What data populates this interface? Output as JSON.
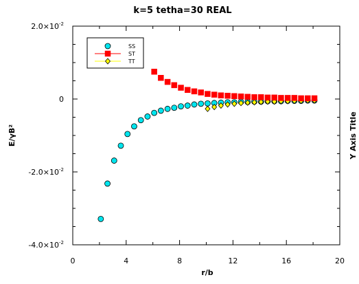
{
  "chart_data": {
    "type": "scatter",
    "title": "k=5 tetha=30 REAL",
    "xlabel": "r/b",
    "ylabel": "E/γB²",
    "ylabel_right": "Y Axis Title",
    "xlim": [
      0,
      20
    ],
    "ylim": [
      -0.04,
      0.02
    ],
    "x_ticks": [
      "0",
      "4",
      "8",
      "12",
      "16",
      "20"
    ],
    "y_ticks": [
      {
        "mantissa": "-4.0×10",
        "exp": "-2",
        "value": -0.04
      },
      {
        "mantissa": "-2.0×10",
        "exp": "-2",
        "value": -0.02
      },
      {
        "mantissa": "0",
        "exp": "",
        "value": 0
      },
      {
        "mantissa": "2.0×10",
        "exp": "-2",
        "value": 0.02
      }
    ],
    "legend_position": "top-left",
    "series": [
      {
        "name": "SS",
        "marker": "circle",
        "color": "#00e5ee",
        "x": [
          2.1,
          2.6,
          3.1,
          3.6,
          4.1,
          4.6,
          5.1,
          5.6,
          6.1,
          6.6,
          7.1,
          7.6,
          8.1,
          8.6,
          9.1,
          9.6,
          10.1,
          10.6,
          11.1,
          11.6,
          12.1,
          12.6,
          13.1,
          13.6,
          14.1,
          14.6,
          15.1,
          15.6,
          16.1,
          16.6,
          17.1,
          17.6,
          18.1
        ],
        "y": [
          -0.0329,
          -0.0232,
          -0.0169,
          -0.0128,
          -0.0096,
          -0.0075,
          -0.0058,
          -0.0048,
          -0.0038,
          -0.0032,
          -0.0027,
          -0.0024,
          -0.002,
          -0.0018,
          -0.0015,
          -0.0013,
          -0.0012,
          -0.0011,
          -0.001,
          -0.0009,
          -0.0009,
          -0.0008,
          -0.0008,
          -0.0007,
          -0.0007,
          -0.0006,
          -0.0006,
          -0.0006,
          -0.0005,
          -0.0005,
          -0.0005,
          -0.0004,
          -0.0004
        ]
      },
      {
        "name": "ST",
        "marker": "square",
        "color": "#ff0000",
        "x": [
          6.1,
          6.6,
          7.1,
          7.6,
          8.1,
          8.6,
          9.1,
          9.6,
          10.1,
          10.6,
          11.1,
          11.6,
          12.1,
          12.6,
          13.1,
          13.6,
          14.1,
          14.6,
          15.1,
          15.6,
          16.1,
          16.6,
          17.1,
          17.6,
          18.1
        ],
        "y": [
          0.0075,
          0.0058,
          0.0047,
          0.0038,
          0.0031,
          0.0025,
          0.0021,
          0.0018,
          0.0014,
          0.0012,
          0.001,
          0.0009,
          0.0008,
          0.0007,
          0.0006,
          0.0005,
          0.0005,
          0.0004,
          0.0004,
          0.0003,
          0.0003,
          0.0003,
          0.0002,
          0.0002,
          0.0002
        ]
      },
      {
        "name": "TT",
        "marker": "diamond",
        "color": "#ffff00",
        "x": [
          10.1,
          10.6,
          11.1,
          11.6,
          12.1,
          12.6,
          13.1,
          13.6,
          14.1,
          14.6,
          15.1,
          15.6,
          16.1,
          16.6,
          17.1,
          17.6,
          18.1
        ],
        "y": [
          -0.0027,
          -0.0022,
          -0.0018,
          -0.0015,
          -0.0013,
          -0.0011,
          -0.001,
          -0.0009,
          -0.0008,
          -0.0007,
          -0.0007,
          -0.0006,
          -0.0006,
          -0.0005,
          -0.0005,
          -0.0004,
          -0.0004
        ]
      }
    ]
  }
}
